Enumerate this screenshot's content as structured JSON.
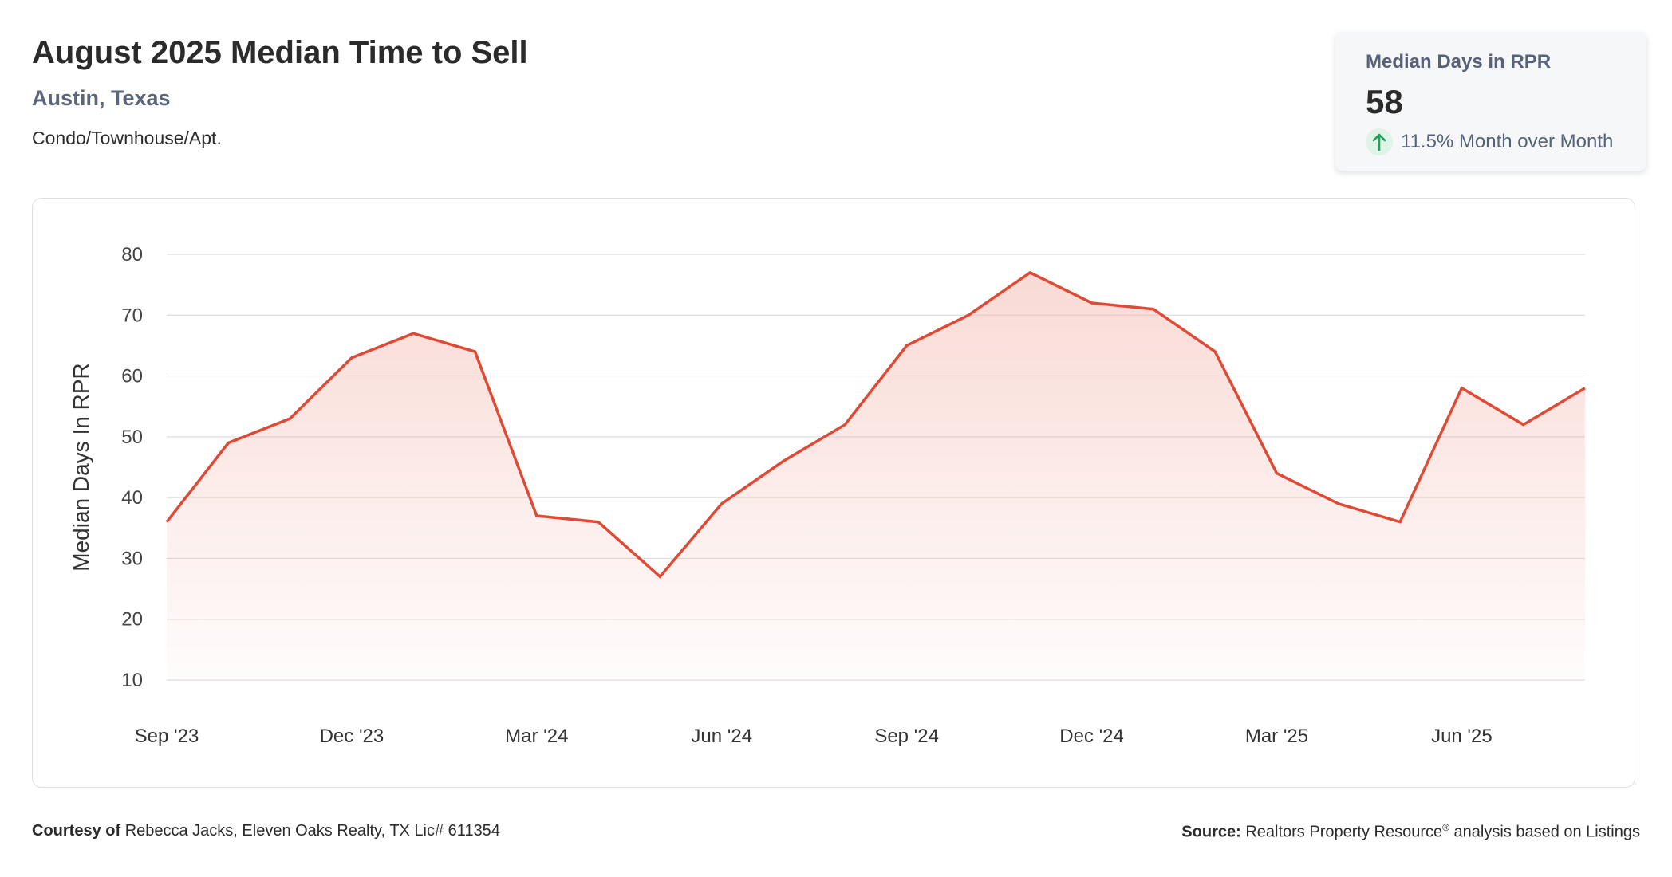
{
  "header": {
    "title": "August 2025 Median Time to Sell",
    "location": "Austin, Texas",
    "property_type": "Condo/Townhouse/Apt."
  },
  "stat_card": {
    "label": "Median Days in RPR",
    "value": "58",
    "change": "11.5% Month over Month",
    "arrow_icon": "arrow-up-icon",
    "change_color": "#1e9e5a"
  },
  "colors": {
    "line": "#e04a35",
    "fill": "#f3b5ab",
    "grid": "#dddddd"
  },
  "chart_data": {
    "type": "area",
    "ylabel": "Median Days In RPR",
    "xlabel": "",
    "ylim": [
      10,
      80
    ],
    "yticks": [
      10,
      20,
      30,
      40,
      50,
      60,
      70,
      80
    ],
    "x": [
      "Sep '23",
      "Oct '23",
      "Nov '23",
      "Dec '23",
      "Jan '24",
      "Feb '24",
      "Mar '24",
      "Apr '24",
      "May '24",
      "Jun '24",
      "Jul '24",
      "Aug '24",
      "Sep '24",
      "Oct '24",
      "Nov '24",
      "Dec '24",
      "Jan '25",
      "Feb '25",
      "Mar '25",
      "Apr '25",
      "May '25",
      "Jun '25",
      "Jul '25",
      "Aug '25"
    ],
    "xtick_labels": [
      "Sep '23",
      "Dec '23",
      "Mar '24",
      "Jun '24",
      "Sep '24",
      "Dec '24",
      "Mar '25",
      "Jun '25"
    ],
    "series": [
      {
        "values": [
          36,
          49,
          53,
          63,
          67,
          64,
          37,
          36,
          27,
          39,
          46,
          52,
          65,
          70,
          77,
          72,
          71,
          64,
          44,
          39,
          36,
          58,
          52,
          58
        ]
      }
    ],
    "grid": true,
    "legend": "none"
  },
  "footer": {
    "courtesy_label": "Courtesy of",
    "courtesy_text": "Rebecca Jacks, Eleven Oaks Realty, TX Lic# 611354",
    "source_label": "Source:",
    "source_text_1": "Realtors Property Resource",
    "source_reg": "®",
    "source_text_2": " analysis based on Listings"
  }
}
